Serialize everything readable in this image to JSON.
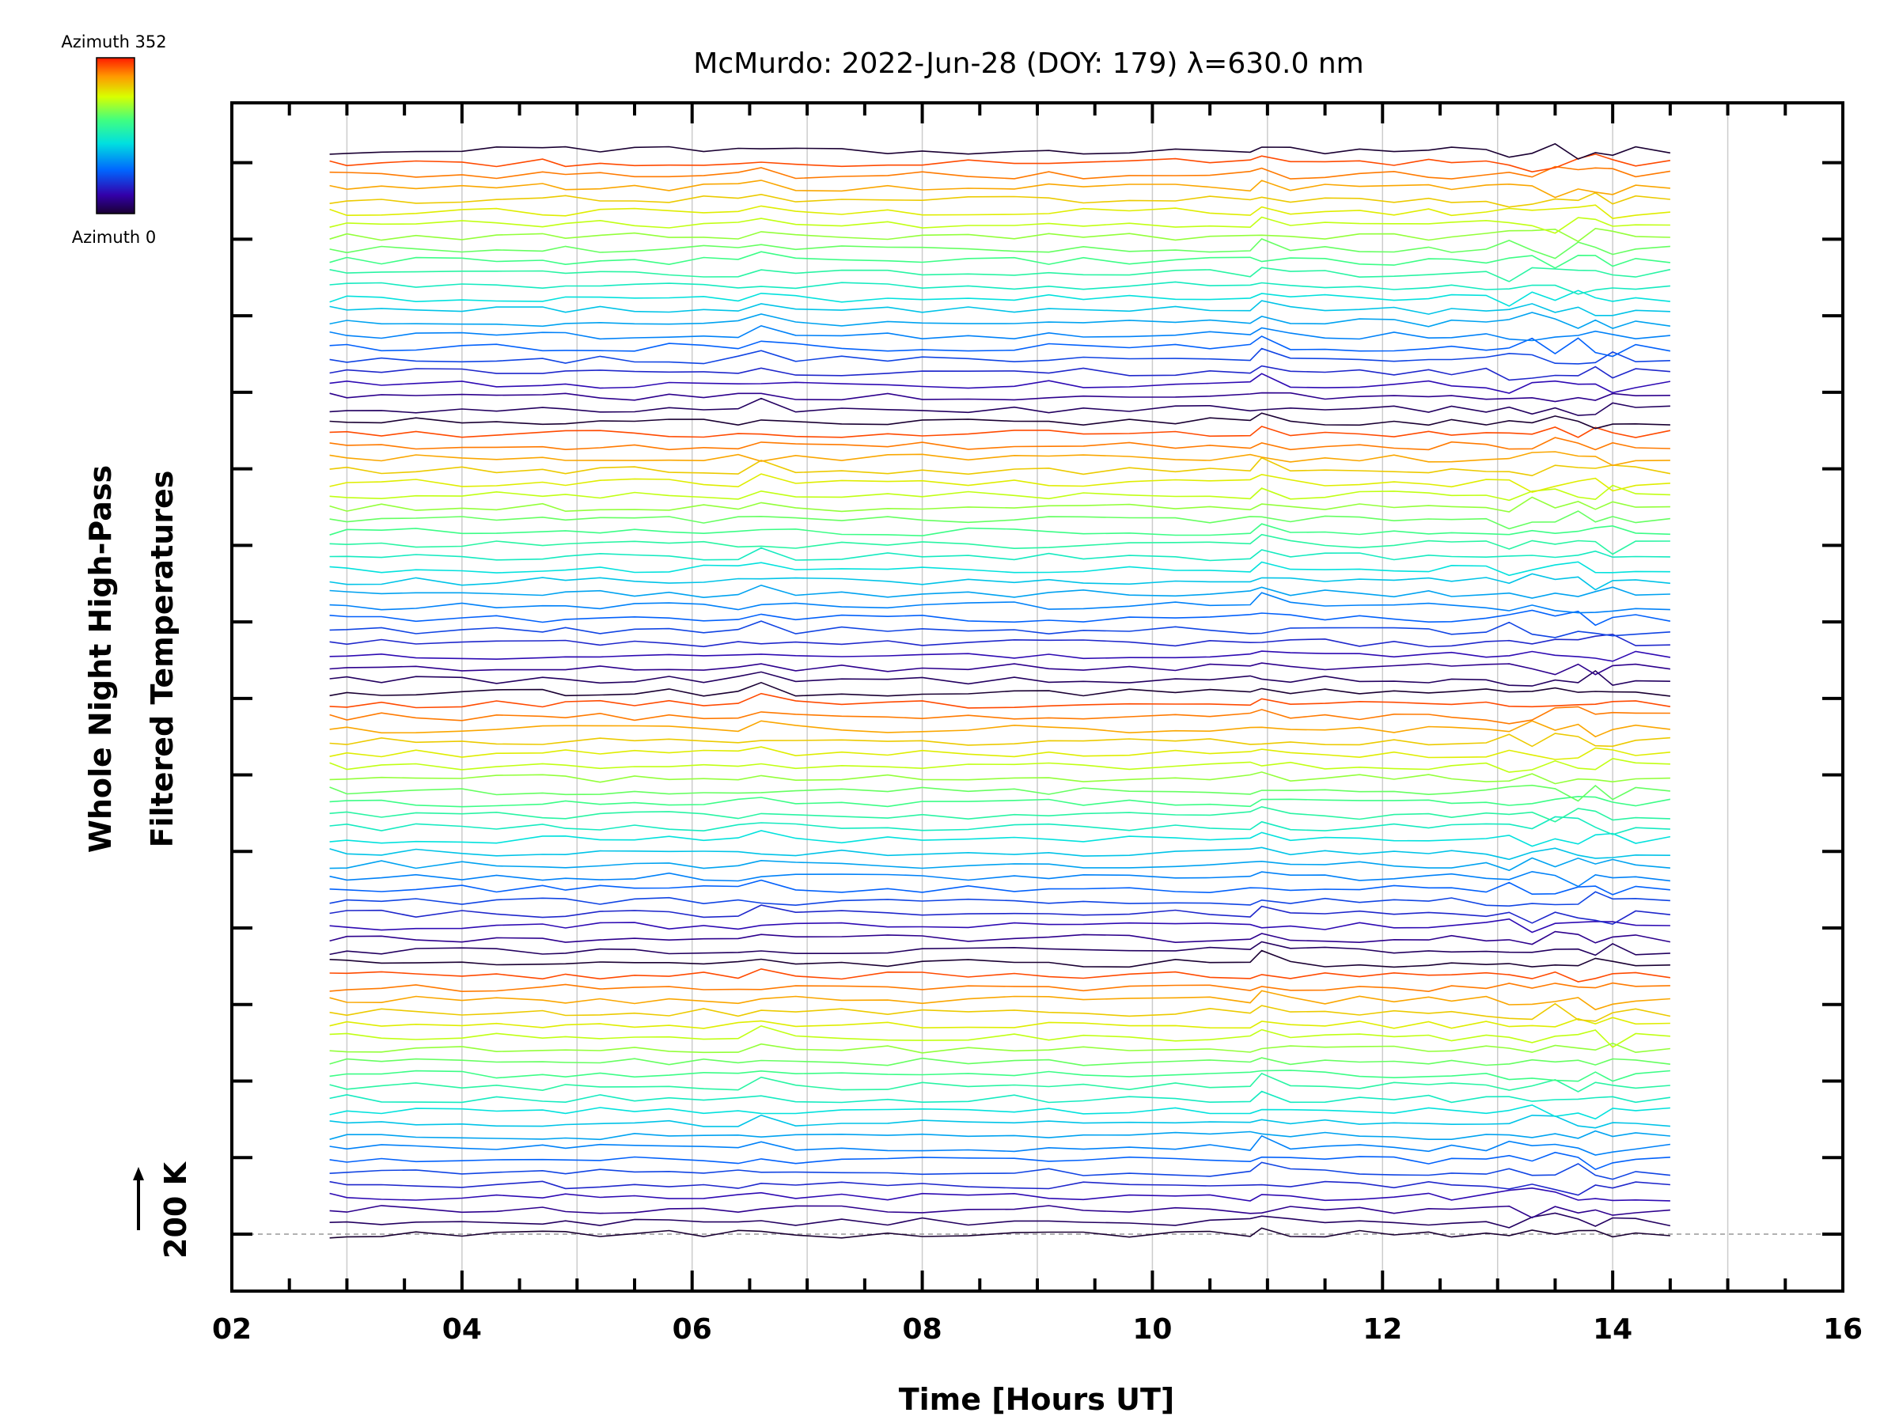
{
  "chart_data": {
    "type": "line",
    "title": "McMurdo: 2022-Jun-28 (DOY: 179) λ=630.0 nm",
    "xlabel": "Time [Hours UT]",
    "ylabel_line1": "Whole Night High-Pass",
    "ylabel_line2": "Filtered Temperatures",
    "scale_label": "200 K",
    "colorbar": {
      "top_label": "Azimuth 352",
      "bottom_label": "Azimuth 0",
      "azimuth_min": 0,
      "azimuth_max": 352
    },
    "xlim": [
      2,
      16
    ],
    "x_ticks": [
      "02",
      "04",
      "06",
      "08",
      "10",
      "12",
      "14",
      "16"
    ],
    "x_tick_values": [
      2,
      4,
      6,
      8,
      10,
      12,
      14,
      16
    ],
    "grid_x": [
      3,
      4,
      5,
      6,
      7,
      8,
      9,
      10,
      11,
      12,
      13,
      14,
      15
    ],
    "y_major_ticks": 15,
    "offset_per_trace_k": 10.0,
    "baseline_k": 200,
    "series_count": 89,
    "series_azimuth_step_deg": 4,
    "times": [
      2.85,
      3.0,
      3.3,
      3.6,
      4.0,
      4.3,
      4.7,
      4.9,
      5.2,
      5.5,
      5.8,
      6.1,
      6.4,
      6.6,
      6.9,
      7.3,
      7.7,
      8.0,
      8.4,
      8.8,
      9.1,
      9.4,
      9.8,
      10.2,
      10.5,
      10.85,
      10.95,
      11.2,
      11.5,
      11.8,
      12.1,
      12.4,
      12.6,
      12.9,
      13.1,
      13.3,
      13.5,
      13.7,
      13.85,
      14.0,
      14.2,
      14.5
    ],
    "series_note": "89 vertically offset traces (azimuths 0-352 in 4° steps), each a high-pass filtered temperature vs time, stacked 10 K apart; color encodes azimuth."
  },
  "colors": {
    "frame": "#000000",
    "grid": "#cccccc",
    "baseline": "#999999"
  }
}
